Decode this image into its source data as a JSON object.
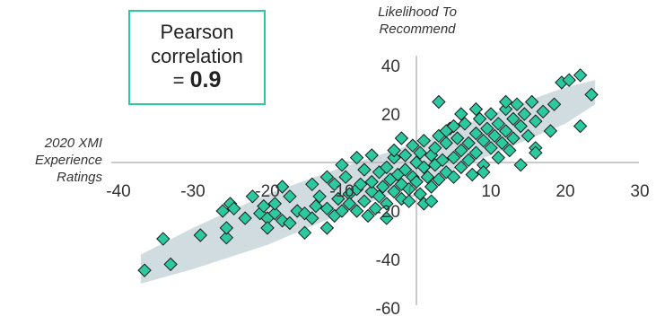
{
  "callout": {
    "line1": "Pearson",
    "line2": "correlation",
    "eq": "=",
    "value": "0.9"
  },
  "chart_data": {
    "type": "scatter",
    "title": "",
    "xlabel": "2020 XMI Experience Ratings",
    "ylabel": "Likelihood To Recommend",
    "xlim": [
      -40,
      30
    ],
    "ylim": [
      -60,
      45
    ],
    "x_ticks": [
      "-40",
      "-30",
      "-20",
      "-10",
      "0",
      "10",
      "20",
      "30"
    ],
    "y_ticks": [
      "40",
      "20",
      "-20",
      "-40",
      "-60"
    ],
    "grid": false,
    "marker_color": "#2cc9a0",
    "band_color": "#c9d6dc",
    "pearson_r": 0.9,
    "points": [
      [
        -36.5,
        -44.5
      ],
      [
        -34,
        -31.5
      ],
      [
        -33,
        -42
      ],
      [
        -29,
        -30
      ],
      [
        -25.5,
        -31
      ],
      [
        -25.5,
        -27
      ],
      [
        -25,
        -17
      ],
      [
        -24.5,
        -19
      ],
      [
        -26,
        -20
      ],
      [
        -21,
        -21
      ],
      [
        -20.5,
        -18
      ],
      [
        -20,
        -23
      ],
      [
        -19,
        -21
      ],
      [
        -19,
        -17
      ],
      [
        -18,
        -24
      ],
      [
        -17,
        -25
      ],
      [
        -17,
        -14
      ],
      [
        -16,
        -20
      ],
      [
        -15,
        -21
      ],
      [
        -14,
        -23
      ],
      [
        -13.5,
        -18
      ],
      [
        -13,
        -14
      ],
      [
        -12,
        -27
      ],
      [
        -12,
        -19
      ],
      [
        -11,
        -22
      ],
      [
        -10.5,
        -15
      ],
      [
        -10,
        -20
      ],
      [
        -9.5,
        -6
      ],
      [
        -9,
        -13
      ],
      [
        -9,
        -17
      ],
      [
        -8,
        -11
      ],
      [
        -8,
        -20
      ],
      [
        -7.5,
        -9
      ],
      [
        -7,
        -16
      ],
      [
        -6.5,
        -22
      ],
      [
        -6,
        -12
      ],
      [
        -6,
        -8
      ],
      [
        -5.5,
        -19
      ],
      [
        -5,
        -4
      ],
      [
        -5,
        -14
      ],
      [
        -4.5,
        -10
      ],
      [
        -4,
        -2
      ],
      [
        -4,
        -17
      ],
      [
        -3.5,
        -7
      ],
      [
        -3,
        -12
      ],
      [
        -3,
        2
      ],
      [
        -2.5,
        -5
      ],
      [
        -2,
        -9
      ],
      [
        -2,
        -15
      ],
      [
        -1.5,
        3
      ],
      [
        -1.5,
        -3
      ],
      [
        -1,
        -11
      ],
      [
        -0.5,
        -6
      ],
      [
        -0.5,
        7
      ],
      [
        0,
        0
      ],
      [
        0,
        -8
      ],
      [
        0.5,
        4
      ],
      [
        0.5,
        -13
      ],
      [
        1,
        -2
      ],
      [
        1,
        9
      ],
      [
        1.5,
        -6
      ],
      [
        2,
        3
      ],
      [
        2,
        -10
      ],
      [
        2.5,
        6
      ],
      [
        2.5,
        -1
      ],
      [
        3,
        -7
      ],
      [
        3,
        11
      ],
      [
        3.5,
        1
      ],
      [
        4,
        -4
      ],
      [
        4,
        8
      ],
      [
        4.5,
        14
      ],
      [
        5,
        2
      ],
      [
        5,
        -6
      ],
      [
        5.5,
        10
      ],
      [
        6,
        5
      ],
      [
        6,
        -2
      ],
      [
        6.5,
        16
      ],
      [
        7,
        8
      ],
      [
        7,
        1
      ],
      [
        7.5,
        -5
      ],
      [
        8,
        12
      ],
      [
        8,
        4
      ],
      [
        8.5,
        18
      ],
      [
        9,
        9
      ],
      [
        9,
        -1
      ],
      [
        9.5,
        14
      ],
      [
        10,
        6
      ],
      [
        10,
        20
      ],
      [
        10.5,
        11
      ],
      [
        11,
        16
      ],
      [
        11,
        2
      ],
      [
        11.5,
        8
      ],
      [
        12,
        22
      ],
      [
        12,
        13
      ],
      [
        12.5,
        5
      ],
      [
        13,
        18
      ],
      [
        13,
        10
      ],
      [
        13.5,
        24
      ],
      [
        14,
        15
      ],
      [
        14,
        -1
      ],
      [
        14.5,
        20
      ],
      [
        15,
        11
      ],
      [
        15.5,
        25
      ],
      [
        16,
        17
      ],
      [
        16,
        6
      ],
      [
        17,
        21
      ],
      [
        18,
        13
      ],
      [
        18.5,
        24
      ],
      [
        19.5,
        33
      ],
      [
        20.5,
        34
      ],
      [
        22,
        36
      ],
      [
        23.5,
        28
      ],
      [
        22,
        15
      ],
      [
        16,
        4
      ],
      [
        3,
        25
      ],
      [
        -10,
        -1
      ],
      [
        -12,
        -6
      ],
      [
        -18,
        -10
      ],
      [
        -22,
        -14
      ],
      [
        -14,
        -9
      ],
      [
        -7,
        -3
      ],
      [
        -1,
        -16
      ],
      [
        1,
        -17
      ],
      [
        2,
        -16
      ],
      [
        4,
        13
      ],
      [
        6,
        20
      ],
      [
        8,
        22
      ],
      [
        -20,
        -27
      ],
      [
        -15,
        -29
      ],
      [
        -23,
        -23
      ],
      [
        -11,
        -9
      ],
      [
        -4,
        -23
      ],
      [
        5,
        15
      ],
      [
        9,
        -4
      ],
      [
        12,
        25
      ],
      [
        -2,
        10
      ],
      [
        -6,
        3
      ],
      [
        -8,
        2
      ],
      [
        -3,
        5
      ]
    ]
  }
}
